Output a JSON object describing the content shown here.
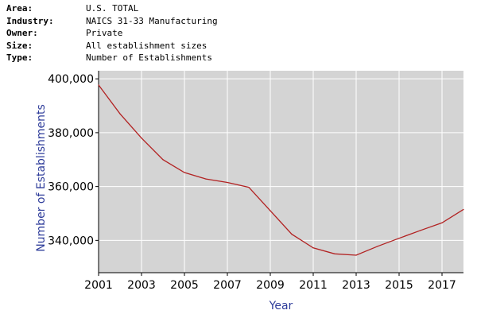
{
  "meta": [
    {
      "key": "Area:",
      "value": "U.S. TOTAL"
    },
    {
      "key": "Industry:",
      "value": "NAICS 31-33 Manufacturing"
    },
    {
      "key": "Owner:",
      "value": "Private"
    },
    {
      "key": "Size:",
      "value": "All establishment sizes"
    },
    {
      "key": "Type:",
      "value": "Number of Establishments"
    }
  ],
  "chart_data": {
    "type": "line",
    "title": "",
    "xlabel": "Year",
    "ylabel": "Number of Establishments",
    "xlim": [
      2001,
      2018
    ],
    "ylim": [
      328000,
      403000
    ],
    "x_ticks": [
      "2001",
      "2003",
      "2005",
      "2007",
      "2009",
      "2011",
      "2013",
      "2015",
      "2017"
    ],
    "y_ticks": [
      "340,000",
      "360,000",
      "380,000",
      "400,000"
    ],
    "y_tick_values": [
      340000,
      360000,
      380000,
      400000
    ],
    "grid": true,
    "plot_background": "#d4d4d4",
    "series": [
      {
        "color": "#b22222",
        "points": [
          [
            2001,
            397700
          ],
          [
            2002,
            387000
          ],
          [
            2003,
            378000
          ],
          [
            2004,
            370000
          ],
          [
            2005,
            365200
          ],
          [
            2006,
            362800
          ],
          [
            2007,
            361500
          ],
          [
            2008,
            359700
          ],
          [
            2009,
            351000
          ],
          [
            2010,
            342300
          ],
          [
            2011,
            337200
          ],
          [
            2012,
            335000
          ],
          [
            2013,
            334500
          ],
          [
            2014,
            337800
          ],
          [
            2015,
            340800
          ],
          [
            2016,
            343700
          ],
          [
            2017,
            346500
          ],
          [
            2018,
            351500
          ]
        ]
      }
    ]
  }
}
